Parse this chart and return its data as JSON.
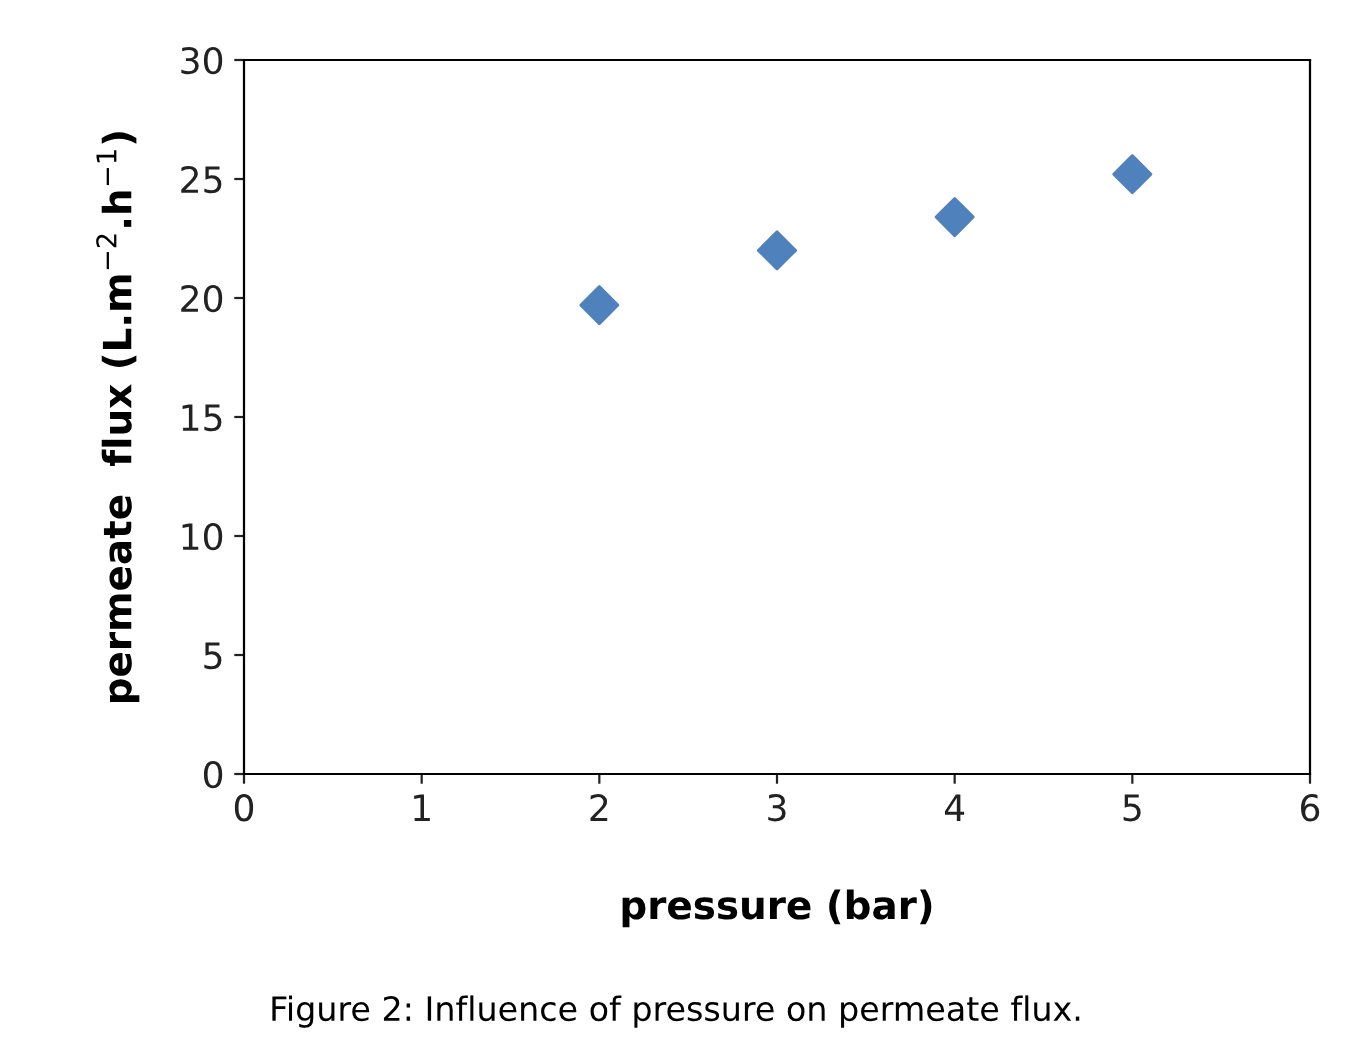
{
  "chart_data": {
    "type": "scatter",
    "xlabel": "pressure (bar)",
    "ylabel": "permeate  flux (L.m$^{−2}$.h$^{−1}$)",
    "x": [
      2,
      3,
      4,
      5
    ],
    "series": [
      {
        "color": "#4f81bd",
        "values": [
          19.7,
          22.0,
          23.4,
          25.2
        ]
      }
    ],
    "xlim": [
      0,
      6
    ],
    "xticks": [
      0,
      1,
      2,
      3,
      4,
      5,
      6
    ],
    "ylim": [
      0,
      30
    ],
    "yticks": [
      0,
      5,
      10,
      15,
      20,
      25,
      30
    ],
    "marker": "diamond",
    "grid": false,
    "legend": false,
    "annotations": [
      "Figure 2: Influence of pressure on permeate flux."
    ]
  }
}
